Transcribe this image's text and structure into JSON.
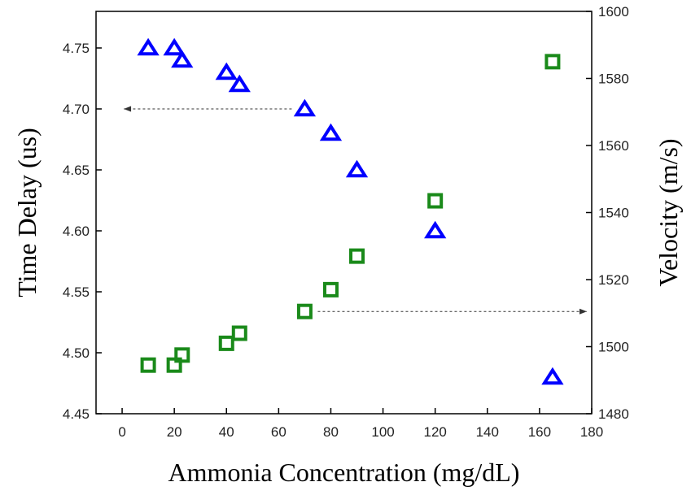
{
  "chart_data": {
    "type": "scatter",
    "title": "",
    "xlabel": "Ammonia Concentration (mg/dL)",
    "ylabel_left": "Time Delay (us)",
    "ylabel_right": "Velocity (m/s)",
    "xlim": [
      -10,
      180
    ],
    "ylim_left": [
      4.45,
      4.78
    ],
    "ylim_right": [
      1480,
      1600
    ],
    "x_ticks": [
      0,
      20,
      40,
      60,
      80,
      100,
      120,
      140,
      160,
      180
    ],
    "y_left_ticks": [
      4.45,
      4.5,
      4.55,
      4.6,
      4.65,
      4.7,
      4.75
    ],
    "y_right_ticks": [
      1480,
      1500,
      1520,
      1540,
      1560,
      1580,
      1600
    ],
    "grid": false,
    "legend": "none",
    "series": [
      {
        "axis": "left",
        "marker": "triangle",
        "color": "#0000ff",
        "points": [
          {
            "x": 10,
            "y": 4.75
          },
          {
            "x": 20,
            "y": 4.75
          },
          {
            "x": 23,
            "y": 4.74
          },
          {
            "x": 40,
            "y": 4.73
          },
          {
            "x": 45,
            "y": 4.72
          },
          {
            "x": 70,
            "y": 4.7
          },
          {
            "x": 80,
            "y": 4.68
          },
          {
            "x": 90,
            "y": 4.65
          },
          {
            "x": 120,
            "y": 4.6
          },
          {
            "x": 165,
            "y": 4.48
          }
        ]
      },
      {
        "axis": "right",
        "marker": "square",
        "color": "#1a8a1a",
        "points": [
          {
            "x": 10,
            "y": 1494.5
          },
          {
            "x": 20,
            "y": 1494.5
          },
          {
            "x": 23,
            "y": 1497.5
          },
          {
            "x": 40,
            "y": 1501
          },
          {
            "x": 45,
            "y": 1504
          },
          {
            "x": 70,
            "y": 1510.5
          },
          {
            "x": 80,
            "y": 1517
          },
          {
            "x": 90,
            "y": 1527
          },
          {
            "x": 120,
            "y": 1543.5
          },
          {
            "x": 165,
            "y": 1585
          }
        ]
      }
    ],
    "annotations": [
      {
        "type": "arrow",
        "direction": "left",
        "axis": "left",
        "y": 4.7,
        "x_from": 65,
        "x_to": 0
      },
      {
        "type": "arrow",
        "direction": "right",
        "axis": "right",
        "y": 1510.5,
        "x_from": 75,
        "x_to": 180
      }
    ]
  }
}
